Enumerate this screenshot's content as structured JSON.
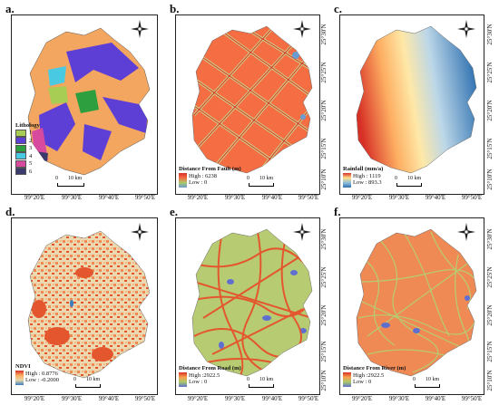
{
  "panels": [
    {
      "letter": "a.",
      "legend_title": "Lithology",
      "lithology_classes": [
        {
          "label": "1",
          "color": "#a7cd54"
        },
        {
          "label": "2",
          "color": "#5e3fd6"
        },
        {
          "label": "3",
          "color": "#2e9f3e"
        },
        {
          "label": "4",
          "color": "#49c9e2"
        },
        {
          "label": "5",
          "color": "#d84a9e"
        },
        {
          "label": "6",
          "color": "#3b3b6b"
        }
      ],
      "base_color": "#f2a660",
      "x_ticks": [
        "99°20'E",
        "99°30'E",
        "99°40'E",
        "99°50'E"
      ],
      "y_ticks": [],
      "scale_zero": "0",
      "scale_label": "10 km"
    },
    {
      "letter": "b.",
      "legend_title": "Distance From Fault (m)",
      "high_label": "High : 6238",
      "low_label": "Low : 0",
      "x_ticks": [
        "99°20'E",
        "99°30'E",
        "99°40'E",
        "99°50'E"
      ],
      "y_ticks": [
        "25°30'N",
        "25°25'N",
        "25°20'N",
        "25°15'N",
        "25°10'N"
      ],
      "scale_zero": "0",
      "scale_label": "10 km"
    },
    {
      "letter": "c.",
      "legend_title": "Rainfall (mm/a)",
      "high_label": "High : 1119",
      "low_label": "Low : 893.3",
      "x_ticks": [
        "99°20'E",
        "99°30'E",
        "99°40'E",
        "99°50'E"
      ],
      "y_ticks": [
        "25°30'N",
        "25°25'N",
        "25°20'N",
        "25°15'N",
        "25°10'N"
      ],
      "scale_zero": "0",
      "scale_label": "10 km"
    },
    {
      "letter": "d.",
      "legend_title": "NDVI",
      "high_label": "High : 0.8776",
      "low_label": "Low : -0.2000",
      "x_ticks": [
        "99°20'E",
        "99°30'E",
        "99°40'E",
        "99°50'E"
      ],
      "y_ticks": [],
      "scale_zero": "0",
      "scale_label": "10 km"
    },
    {
      "letter": "e.",
      "legend_title": "Distance From Road (m)",
      "high_label": "High :2922.5",
      "low_label": "Low : 0",
      "x_ticks": [
        "99°20'E",
        "99°30'E",
        "99°40'E",
        "99°50'E"
      ],
      "y_ticks": [
        "25°30'N",
        "25°25'N",
        "25°20'N",
        "25°15'N",
        "25°10'N"
      ],
      "scale_zero": "0",
      "scale_label": "10 km"
    },
    {
      "letter": "f.",
      "legend_title": "Distance From River (m)",
      "high_label": "High :2922.5",
      "low_label": "Low : 0",
      "x_ticks": [
        "99°20'E",
        "99°30'E",
        "99°40'E",
        "99°50'E"
      ],
      "y_ticks": [
        "25°30'N",
        "25°25'N",
        "25°20'N",
        "25°15'N",
        "25°10'N"
      ],
      "scale_zero": "0",
      "scale_label": "10 km"
    }
  ],
  "ramp_colors": {
    "fault": [
      "#d73027",
      "#f46d43",
      "#a9c96a",
      "#6b9bd1"
    ],
    "rainfall": [
      "#d73027",
      "#fee08b",
      "#91bfdb",
      "#2c6fb0"
    ],
    "ndvi": [
      "#d73027",
      "#fdae61",
      "#e6d6a8",
      "#3b7bbf"
    ],
    "road": [
      "#d73027",
      "#f6a04d",
      "#a9c96a",
      "#5e6fd0"
    ],
    "river": [
      "#d73027",
      "#f6a04d",
      "#a9c96a",
      "#5e6fd0"
    ]
  }
}
